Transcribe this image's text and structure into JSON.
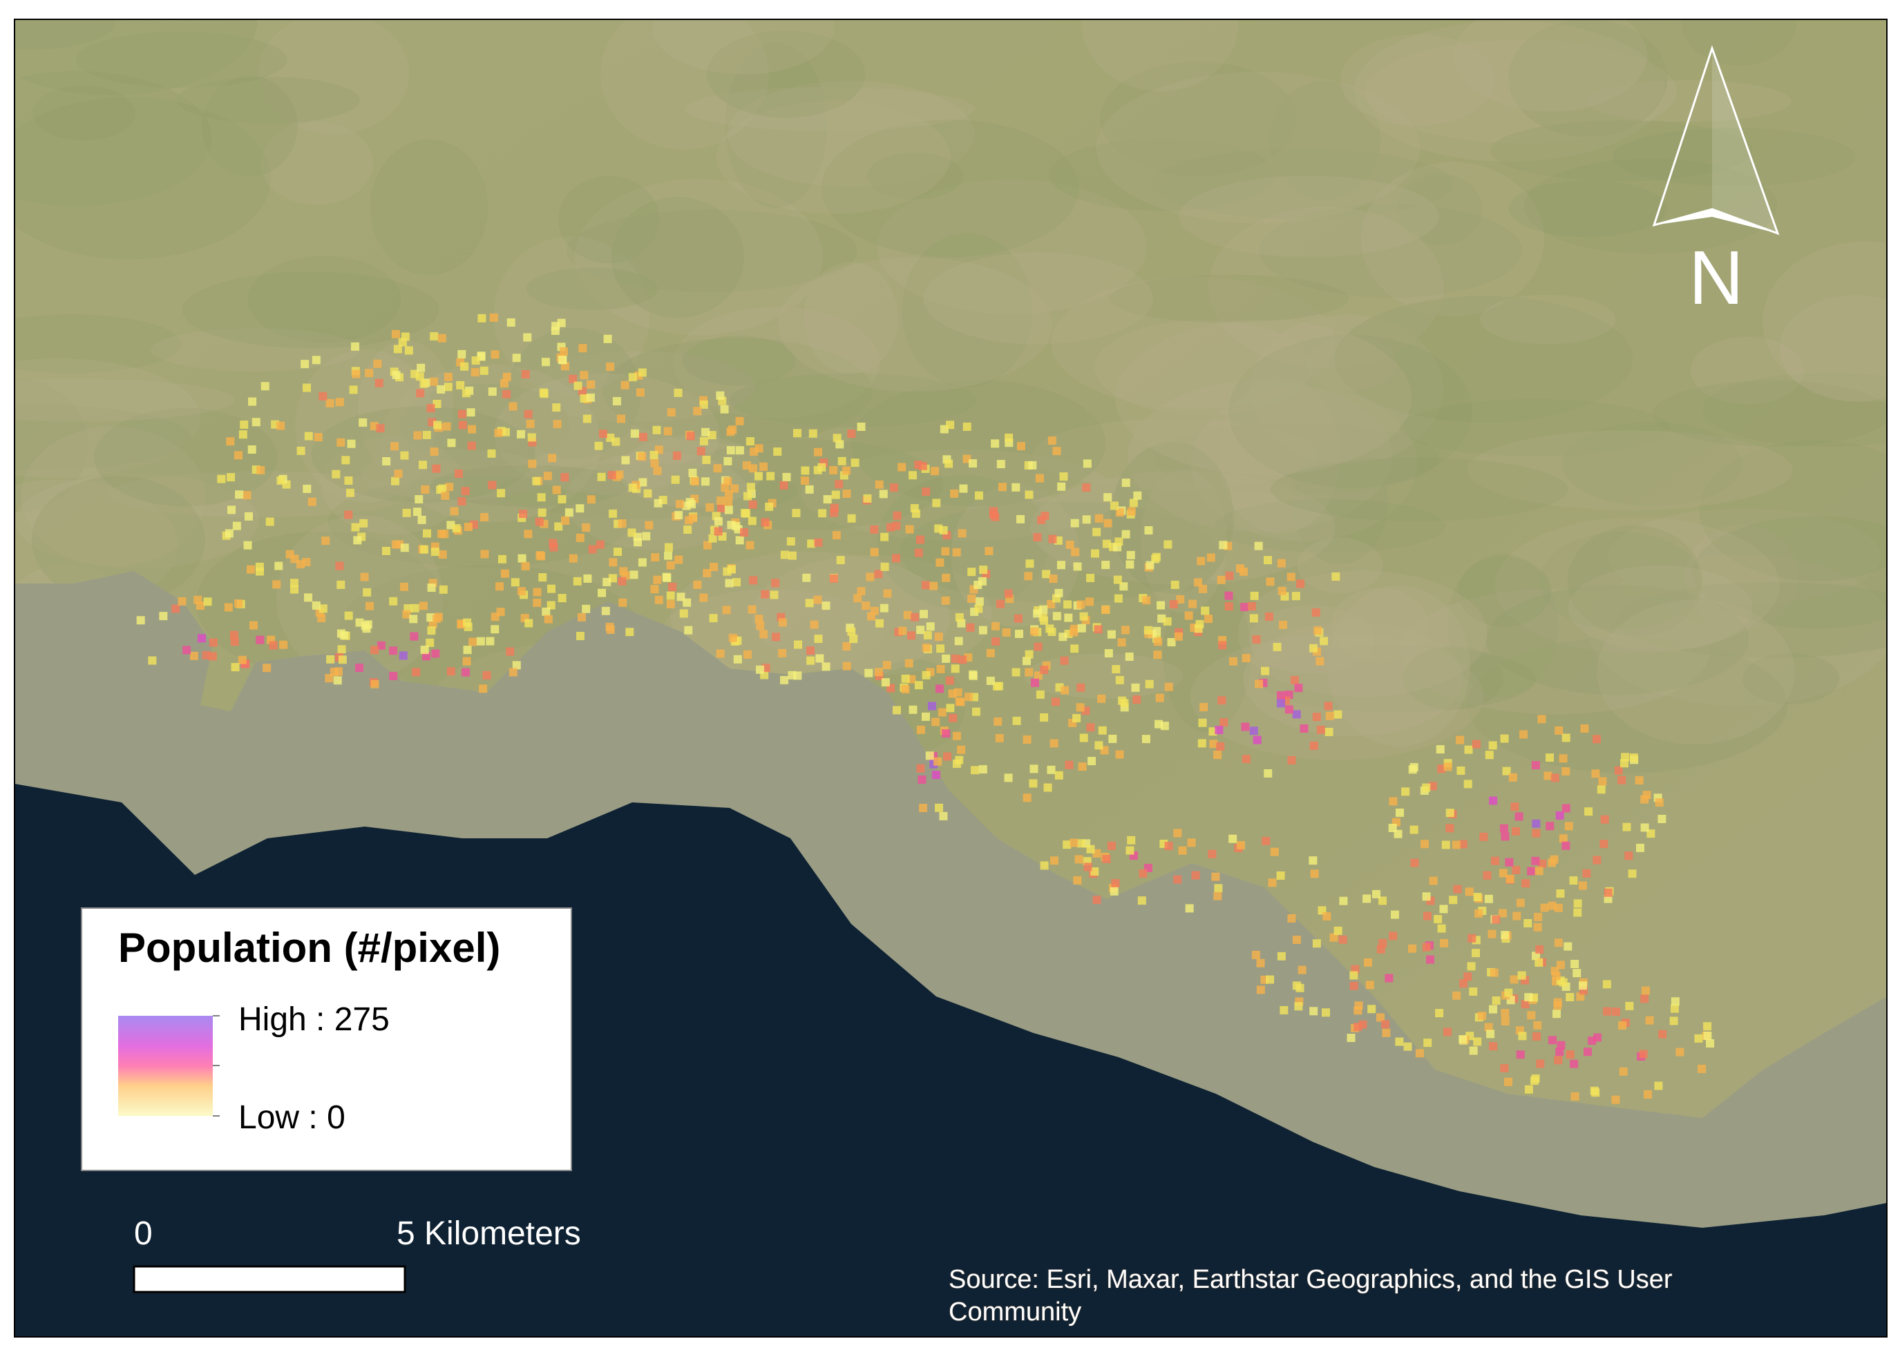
{
  "legend": {
    "title": "Population (#/pixel)",
    "high_label": "High : 275",
    "low_label": "Low : 0"
  },
  "scale_bar": {
    "start_label": "0",
    "end_label": "5 Kilometers"
  },
  "north_arrow": {
    "label": "N"
  },
  "source": {
    "lines": [
      "Source: Esri, Maxar, Earthstar Geographics, and the GIS User",
      "Community"
    ]
  }
}
